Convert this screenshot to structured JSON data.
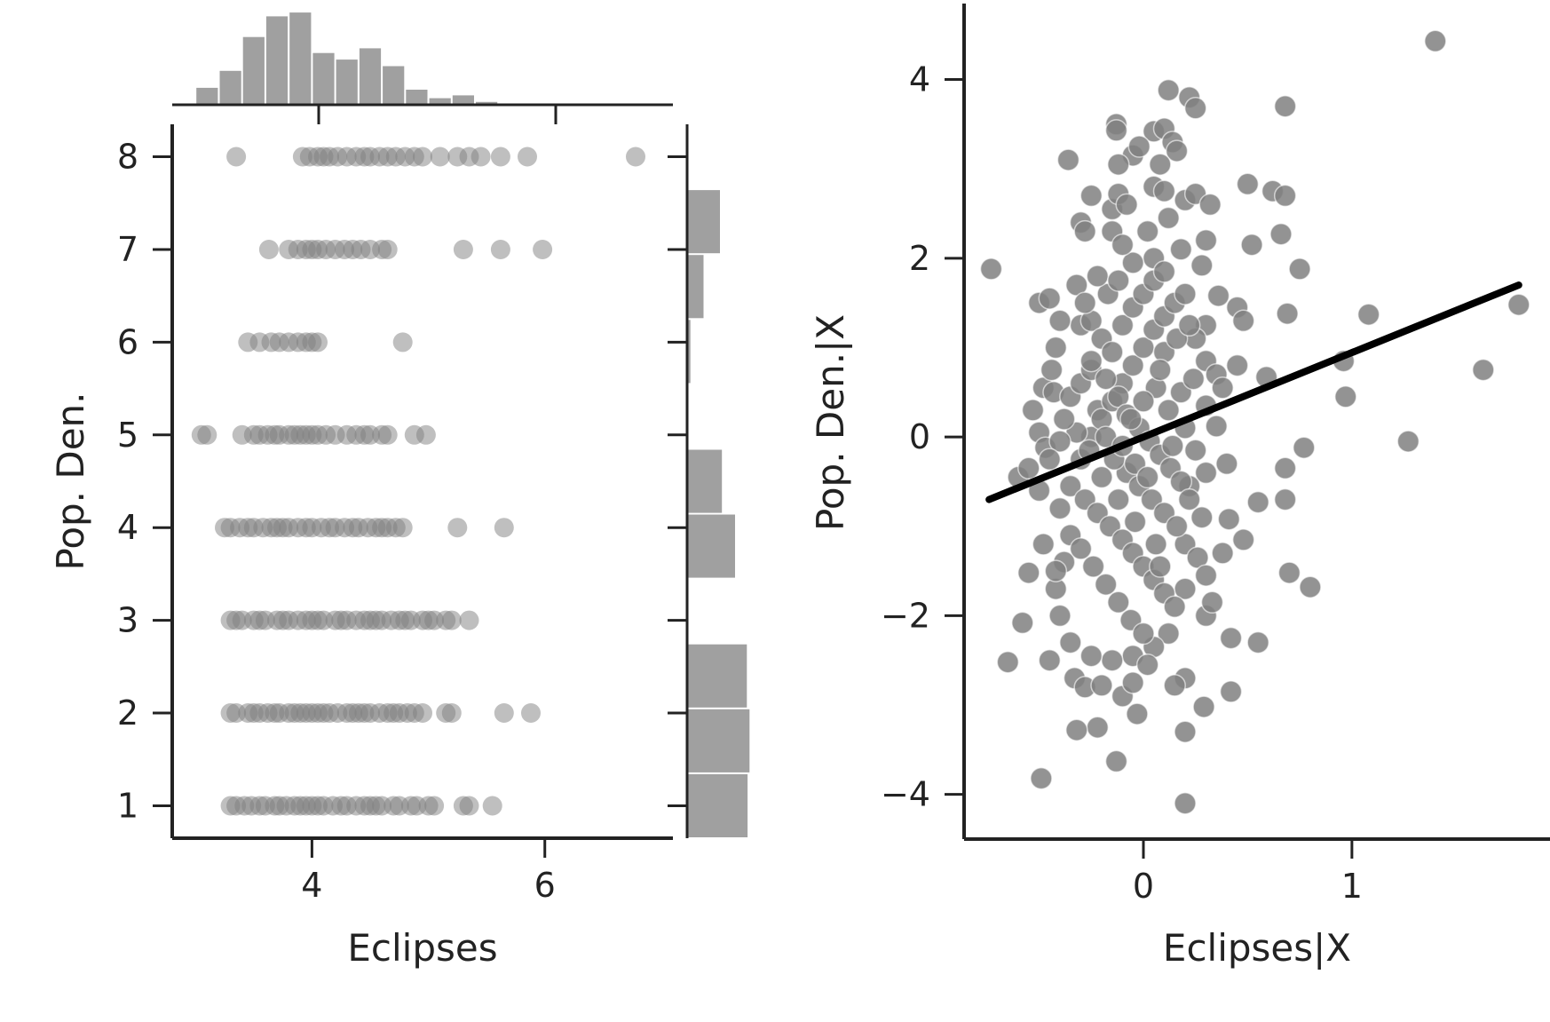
{
  "colors": {
    "marker": "#808080",
    "bar": "#a0a0a0",
    "axis": "#222222",
    "fit_line": "#000000"
  },
  "chart_data": [
    {
      "type": "scatter",
      "panel": "joint",
      "xlabel": "Eclipses",
      "ylabel": "Pop. Den.",
      "xlim": [
        2.8,
        7.1
      ],
      "ylim": [
        0.65,
        8.35
      ],
      "xticks": [
        4,
        6
      ],
      "yticks": [
        1,
        2,
        3,
        4,
        5,
        6,
        7,
        8
      ],
      "marker_opacity": 0.5,
      "grid": false,
      "rows": [
        {
          "y": 1,
          "x": [
            3.3,
            3.35,
            3.42,
            3.48,
            3.55,
            3.6,
            3.68,
            3.72,
            3.78,
            3.85,
            3.9,
            3.95,
            4.0,
            4.05,
            4.1,
            4.18,
            4.25,
            4.3,
            4.38,
            4.45,
            4.5,
            4.55,
            4.6,
            4.7,
            4.75,
            4.85,
            4.9,
            5.0,
            5.05,
            5.3,
            5.35,
            5.55
          ]
        },
        {
          "y": 2,
          "x": [
            3.3,
            3.35,
            3.45,
            3.5,
            3.55,
            3.62,
            3.68,
            3.72,
            3.8,
            3.85,
            3.9,
            3.95,
            4.0,
            4.05,
            4.1,
            4.15,
            4.22,
            4.3,
            4.35,
            4.4,
            4.45,
            4.5,
            4.58,
            4.65,
            4.7,
            4.75,
            4.82,
            4.88,
            4.95,
            5.15,
            5.2,
            5.65,
            5.88
          ]
        },
        {
          "y": 3,
          "x": [
            3.3,
            3.35,
            3.4,
            3.5,
            3.55,
            3.6,
            3.7,
            3.75,
            3.8,
            3.88,
            3.95,
            4.0,
            4.05,
            4.1,
            4.2,
            4.25,
            4.3,
            4.38,
            4.45,
            4.5,
            4.55,
            4.6,
            4.68,
            4.75,
            4.8,
            4.85,
            4.95,
            5.0,
            5.05,
            5.15,
            5.2,
            5.35
          ]
        },
        {
          "y": 4,
          "x": [
            3.25,
            3.3,
            3.38,
            3.45,
            3.5,
            3.58,
            3.65,
            3.7,
            3.75,
            3.8,
            3.88,
            3.95,
            4.0,
            4.08,
            4.15,
            4.2,
            4.28,
            4.35,
            4.4,
            4.48,
            4.55,
            4.6,
            4.65,
            4.72,
            4.78,
            5.25,
            5.65
          ]
        },
        {
          "y": 5,
          "x": [
            3.05,
            3.1,
            3.4,
            3.5,
            3.55,
            3.62,
            3.68,
            3.72,
            3.8,
            3.85,
            3.9,
            3.95,
            4.0,
            4.05,
            4.12,
            4.2,
            4.3,
            4.38,
            4.45,
            4.5,
            4.6,
            4.65,
            4.88,
            4.98
          ]
        },
        {
          "y": 6,
          "x": [
            3.45,
            3.55,
            3.65,
            3.72,
            3.8,
            3.88,
            3.95,
            4.0,
            4.05,
            4.78
          ]
        },
        {
          "y": 7,
          "x": [
            3.63,
            3.8,
            3.88,
            3.95,
            4.0,
            4.05,
            4.12,
            4.2,
            4.28,
            4.35,
            4.42,
            4.5,
            4.6,
            4.65,
            5.3,
            5.62,
            5.98
          ]
        },
        {
          "y": 8,
          "x": [
            3.35,
            3.92,
            3.98,
            4.05,
            4.1,
            4.15,
            4.22,
            4.3,
            4.38,
            4.45,
            4.5,
            4.58,
            4.65,
            4.72,
            4.8,
            4.88,
            4.95,
            5.1,
            5.25,
            5.35,
            5.45,
            5.62,
            5.85,
            6.78
          ]
        }
      ],
      "marginal_x_histogram": {
        "bin_start": 3.0,
        "bin_width": 0.2,
        "heights": [
          0.18,
          0.36,
          0.72,
          0.94,
          0.98,
          0.55,
          0.48,
          0.6,
          0.41,
          0.16,
          0.07,
          0.1,
          0.03
        ]
      },
      "marginal_y_histogram": {
        "bins": [
          {
            "from": 0.65,
            "to": 1.35,
            "height": 0.92
          },
          {
            "from": 1.35,
            "to": 2.05,
            "height": 0.95
          },
          {
            "from": 2.05,
            "to": 2.75,
            "height": 0.91
          },
          {
            "from": 2.75,
            "to": 3.45,
            "height": 0.0
          },
          {
            "from": 3.45,
            "to": 4.15,
            "height": 0.73
          },
          {
            "from": 4.15,
            "to": 4.85,
            "height": 0.53
          },
          {
            "from": 4.85,
            "to": 5.55,
            "height": 0.0
          },
          {
            "from": 5.55,
            "to": 6.25,
            "height": 0.05
          },
          {
            "from": 6.25,
            "to": 6.95,
            "height": 0.25
          },
          {
            "from": 6.95,
            "to": 7.65,
            "height": 0.5
          }
        ]
      }
    },
    {
      "type": "scatter",
      "panel": "partial-regression",
      "xlabel": "Eclipses|X",
      "ylabel": "Pop. Den.|X",
      "xlim": [
        -0.86,
        1.95
      ],
      "ylim": [
        -4.5,
        4.85
      ],
      "xticks": [
        0,
        1
      ],
      "yticks": [
        4,
        2,
        0,
        -2,
        -4
      ],
      "grid": false,
      "fit_line": {
        "x": [
          -0.74,
          1.8
        ],
        "y": [
          -0.7,
          1.7
        ]
      },
      "points": [
        [
          1.4,
          4.43
        ],
        [
          0.68,
          3.7
        ],
        [
          0.12,
          3.88
        ],
        [
          0.22,
          3.8
        ],
        [
          0.25,
          3.68
        ],
        [
          -0.13,
          3.5
        ],
        [
          -0.13,
          3.43
        ],
        [
          0.05,
          3.42
        ],
        [
          0.1,
          3.45
        ],
        [
          -0.36,
          3.1
        ],
        [
          -0.05,
          3.15
        ],
        [
          -0.12,
          3.05
        ],
        [
          0.14,
          3.3
        ],
        [
          0.16,
          3.2
        ],
        [
          0.5,
          2.83
        ],
        [
          0.62,
          2.75
        ],
        [
          0.68,
          2.7
        ],
        [
          0.66,
          2.27
        ],
        [
          0.75,
          1.88
        ],
        [
          0.52,
          2.15
        ],
        [
          0.69,
          1.38
        ],
        [
          -0.73,
          1.88
        ],
        [
          -0.5,
          1.5
        ],
        [
          -0.45,
          1.55
        ],
        [
          -0.32,
          1.7
        ],
        [
          0.36,
          1.58
        ],
        [
          0.45,
          1.45
        ],
        [
          0.48,
          1.3
        ],
        [
          0.96,
          0.85
        ],
        [
          1.08,
          1.37
        ],
        [
          1.8,
          1.48
        ],
        [
          0.59,
          0.67
        ],
        [
          1.63,
          0.75
        ],
        [
          0.97,
          0.45
        ],
        [
          1.27,
          -0.05
        ],
        [
          0.77,
          -0.12
        ],
        [
          0.68,
          -0.35
        ],
        [
          0.55,
          -0.73
        ],
        [
          0.68,
          -0.7
        ],
        [
          0.7,
          -1.52
        ],
        [
          0.8,
          -1.68
        ],
        [
          0.48,
          -1.15
        ],
        [
          0.41,
          -0.92
        ],
        [
          0.42,
          -2.25
        ],
        [
          0.55,
          -2.3
        ],
        [
          0.42,
          -2.85
        ],
        [
          0.2,
          -2.7
        ],
        [
          0.15,
          -2.78
        ],
        [
          0.29,
          -3.02
        ],
        [
          0.2,
          -3.3
        ],
        [
          0.2,
          -4.1
        ],
        [
          -0.49,
          -3.82
        ],
        [
          -0.13,
          -3.63
        ],
        [
          -0.03,
          -3.1
        ],
        [
          -0.22,
          -3.25
        ],
        [
          -0.32,
          -3.28
        ],
        [
          -0.33,
          -2.7
        ],
        [
          -0.28,
          -2.8
        ],
        [
          -0.2,
          -2.78
        ],
        [
          -0.65,
          -2.52
        ],
        [
          -0.58,
          -2.08
        ],
        [
          -0.55,
          -1.52
        ],
        [
          -0.48,
          -1.2
        ],
        [
          -0.6,
          -0.45
        ],
        [
          -0.55,
          -0.35
        ],
        [
          -0.5,
          0.05
        ],
        [
          -0.47,
          -0.12
        ],
        [
          -0.53,
          0.3
        ],
        [
          -0.48,
          0.55
        ],
        [
          -0.43,
          0.5
        ],
        [
          -0.35,
          0.45
        ],
        [
          -0.3,
          0.6
        ],
        [
          -0.25,
          0.75
        ],
        [
          -0.22,
          0.3
        ],
        [
          -0.3,
          1.25
        ],
        [
          -0.25,
          1.3
        ],
        [
          -0.3,
          2.4
        ],
        [
          -0.28,
          2.3
        ],
        [
          -0.15,
          2.55
        ],
        [
          -0.12,
          2.72
        ],
        [
          0.05,
          2.8
        ],
        [
          0.1,
          2.75
        ],
        [
          0.2,
          2.65
        ],
        [
          0.25,
          2.72
        ],
        [
          0.3,
          2.2
        ],
        [
          0.28,
          1.92
        ],
        [
          0.18,
          2.1
        ],
        [
          0.05,
          2.0
        ],
        [
          -0.05,
          1.95
        ],
        [
          -0.15,
          2.3
        ],
        [
          -0.1,
          2.15
        ],
        [
          0.3,
          1.25
        ],
        [
          0.25,
          1.1
        ],
        [
          0.3,
          0.85
        ],
        [
          0.35,
          0.7
        ],
        [
          0.38,
          0.55
        ],
        [
          0.3,
          0.35
        ],
        [
          0.35,
          0.12
        ],
        [
          0.25,
          -0.15
        ],
        [
          0.3,
          -0.4
        ],
        [
          0.22,
          -0.55
        ],
        [
          0.28,
          -0.9
        ],
        [
          0.2,
          -1.2
        ],
        [
          0.26,
          -1.35
        ],
        [
          0.3,
          -1.55
        ],
        [
          0.2,
          -1.7
        ],
        [
          0.3,
          -2.0
        ],
        [
          0.12,
          -2.2
        ],
        [
          0.05,
          -2.35
        ],
        [
          -0.05,
          -2.45
        ],
        [
          -0.15,
          -2.5
        ],
        [
          -0.25,
          -2.45
        ],
        [
          -0.35,
          -2.3
        ],
        [
          -0.4,
          -2.0
        ],
        [
          -0.42,
          -1.7
        ],
        [
          -0.38,
          -1.4
        ],
        [
          -0.35,
          -1.1
        ],
        [
          -0.4,
          -0.8
        ],
        [
          -0.35,
          -0.55
        ],
        [
          -0.3,
          -0.25
        ],
        [
          -0.25,
          0.0
        ],
        [
          -0.2,
          0.2
        ],
        [
          -0.15,
          0.4
        ],
        [
          -0.1,
          0.6
        ],
        [
          -0.05,
          0.8
        ],
        [
          0.0,
          1.0
        ],
        [
          0.05,
          1.2
        ],
        [
          0.1,
          1.35
        ],
        [
          0.15,
          1.5
        ],
        [
          0.2,
          1.6
        ],
        [
          -0.2,
          1.1
        ],
        [
          -0.15,
          0.95
        ],
        [
          -0.1,
          1.25
        ],
        [
          -0.05,
          1.45
        ],
        [
          0.0,
          1.6
        ],
        [
          0.05,
          1.75
        ],
        [
          0.1,
          1.85
        ],
        [
          -0.25,
          0.85
        ],
        [
          -0.18,
          0.65
        ],
        [
          -0.12,
          0.45
        ],
        [
          -0.08,
          0.25
        ],
        [
          -0.02,
          0.1
        ],
        [
          0.03,
          -0.05
        ],
        [
          0.08,
          -0.2
        ],
        [
          0.13,
          -0.35
        ],
        [
          0.18,
          -0.5
        ],
        [
          0.22,
          -0.7
        ],
        [
          -0.28,
          -0.7
        ],
        [
          -0.22,
          -0.85
        ],
        [
          -0.16,
          -1.0
        ],
        [
          -0.1,
          -1.15
        ],
        [
          -0.05,
          -1.3
        ],
        [
          0.0,
          -1.45
        ],
        [
          0.05,
          -1.6
        ],
        [
          0.1,
          -1.75
        ],
        [
          0.15,
          -1.9
        ],
        [
          -0.3,
          -1.25
        ],
        [
          -0.24,
          -1.45
        ],
        [
          -0.18,
          -1.65
        ],
        [
          -0.12,
          -1.85
        ],
        [
          -0.06,
          -2.05
        ],
        [
          0.0,
          -2.2
        ],
        [
          -0.08,
          -0.4
        ],
        [
          -0.02,
          -0.55
        ],
        [
          0.04,
          -0.7
        ],
        [
          0.1,
          -0.85
        ],
        [
          0.16,
          -1.0
        ],
        [
          -0.14,
          -0.25
        ],
        [
          -0.2,
          -0.45
        ],
        [
          -0.26,
          -0.15
        ],
        [
          -0.32,
          0.05
        ],
        [
          0.12,
          0.3
        ],
        [
          0.18,
          0.5
        ],
        [
          0.24,
          0.65
        ],
        [
          0.06,
          0.55
        ],
        [
          0.0,
          0.4
        ],
        [
          -0.06,
          0.2
        ],
        [
          0.1,
          0.95
        ],
        [
          0.16,
          1.1
        ],
        [
          0.22,
          1.25
        ],
        [
          -0.17,
          1.6
        ],
        [
          -0.22,
          1.8
        ],
        [
          -0.12,
          1.75
        ],
        [
          0.02,
          2.3
        ],
        [
          0.12,
          2.45
        ],
        [
          -0.08,
          2.6
        ],
        [
          -0.02,
          3.25
        ],
        [
          0.08,
          3.05
        ],
        [
          -0.25,
          2.7
        ],
        [
          0.32,
          2.6
        ],
        [
          0.45,
          0.8
        ],
        [
          0.4,
          -0.3
        ],
        [
          0.38,
          -1.3
        ],
        [
          0.33,
          -1.85
        ],
        [
          -0.45,
          -2.5
        ],
        [
          -0.1,
          -2.9
        ],
        [
          -0.05,
          -2.75
        ],
        [
          0.02,
          -2.55
        ],
        [
          0.08,
          -1.45
        ],
        [
          -0.12,
          -0.7
        ],
        [
          -0.04,
          -0.95
        ],
        [
          0.14,
          -0.1
        ],
        [
          0.2,
          0.1
        ],
        [
          0.08,
          0.75
        ],
        [
          -0.18,
          0.0
        ],
        [
          -0.1,
          -0.1
        ],
        [
          -0.04,
          -0.3
        ],
        [
          0.02,
          -0.45
        ],
        [
          0.06,
          -1.2
        ],
        [
          -0.28,
          1.5
        ],
        [
          -0.4,
          1.3
        ],
        [
          -0.42,
          1.0
        ],
        [
          -0.44,
          0.75
        ],
        [
          -0.38,
          0.2
        ],
        [
          -0.4,
          -0.05
        ],
        [
          -0.45,
          -0.25
        ],
        [
          -0.5,
          -0.6
        ],
        [
          -0.42,
          -1.5
        ]
      ]
    }
  ]
}
